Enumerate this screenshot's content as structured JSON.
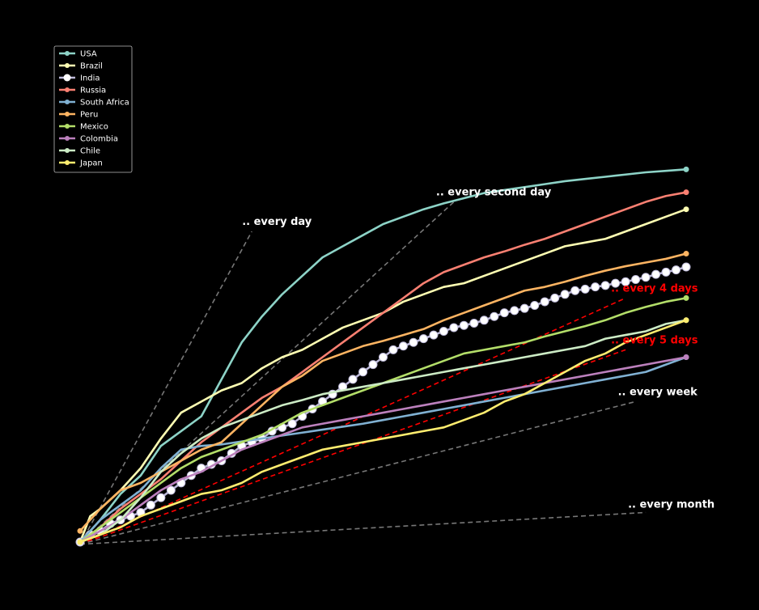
{
  "chart_data": {
    "type": "line",
    "title": "",
    "xlabel": "",
    "ylabel": "",
    "xlim": [
      0,
      60
    ],
    "ylim": [
      0,
      50
    ],
    "grid": false,
    "legend_placement": "top-left",
    "series": [
      {
        "name": "USA",
        "color": "#8dd3c7",
        "x": [
          0,
          2,
          4,
          6,
          8,
          10,
          12,
          14,
          16,
          18,
          20,
          22,
          24,
          26,
          28,
          30,
          32,
          34,
          36,
          38,
          40,
          42,
          44,
          46,
          48,
          50,
          52,
          54,
          56,
          58,
          60
        ],
        "y": [
          0,
          3,
          6.5,
          9,
          13,
          15,
          17,
          22,
          27,
          30.5,
          33.5,
          36,
          38.5,
          40,
          41.5,
          43,
          44,
          45,
          45.8,
          46.5,
          47.2,
          47.6,
          48,
          48.4,
          48.8,
          49.1,
          49.4,
          49.7,
          50,
          50.2,
          50.4
        ]
      },
      {
        "name": "Brazil",
        "color": "#ffffb3",
        "x": [
          0,
          1,
          2,
          4,
          6,
          8,
          10,
          12,
          14,
          16,
          18,
          20,
          22,
          24,
          26,
          28,
          30,
          32,
          34,
          36,
          38,
          40,
          42,
          44,
          46,
          48,
          50,
          52,
          54,
          56,
          58,
          60
        ],
        "y": [
          0,
          3.5,
          4.5,
          7,
          10,
          14,
          17.5,
          19,
          20.5,
          21.5,
          23.5,
          25,
          26,
          27.5,
          29,
          30,
          31,
          32.5,
          33.5,
          34.5,
          35,
          36,
          37,
          38,
          39,
          40,
          40.5,
          41,
          42,
          43,
          44,
          45
        ]
      },
      {
        "name": "India",
        "color": "#bebada",
        "x": [
          0,
          1,
          2,
          3,
          4,
          5,
          6,
          7,
          8,
          9,
          10,
          11,
          12,
          13,
          14,
          15,
          16,
          17,
          18,
          19,
          20,
          21,
          22,
          23,
          24,
          25,
          26,
          27,
          28,
          29,
          30,
          31,
          32,
          33,
          34,
          35,
          36,
          37,
          38,
          39,
          40,
          41,
          42,
          43,
          44,
          45,
          46,
          47,
          48,
          49,
          50,
          51,
          52,
          53,
          54,
          55,
          56,
          57,
          58,
          59,
          60
        ],
        "y": [
          0,
          1,
          1.5,
          2.5,
          3,
          3.5,
          4,
          5,
          6,
          7,
          8,
          9,
          10,
          10.5,
          11,
          12,
          13,
          13.5,
          14,
          15,
          15.5,
          16,
          17,
          18,
          19,
          20,
          21,
          22,
          23,
          24,
          25,
          26,
          26.5,
          27,
          27.5,
          28,
          28.5,
          29,
          29.3,
          29.6,
          30,
          30.5,
          31,
          31.3,
          31.6,
          32,
          32.5,
          33,
          33.5,
          34,
          34.2,
          34.5,
          34.7,
          35,
          35.2,
          35.5,
          35.8,
          36.2,
          36.5,
          36.8,
          37.2
        ]
      },
      {
        "name": "Russia",
        "color": "#fb8072",
        "x": [
          0,
          2,
          4,
          6,
          8,
          10,
          12,
          14,
          16,
          18,
          20,
          22,
          24,
          26,
          28,
          30,
          32,
          34,
          36,
          38,
          40,
          42,
          44,
          46,
          48,
          50,
          52,
          54,
          56,
          58,
          60
        ],
        "y": [
          0,
          2,
          4.5,
          6.5,
          8.5,
          11,
          13.5,
          15.5,
          17.5,
          19.5,
          21,
          23,
          25,
          27,
          29,
          31,
          33,
          35,
          36.5,
          37.5,
          38.5,
          39.3,
          40.2,
          41,
          42,
          43,
          44,
          45,
          46,
          46.8,
          47.3
        ]
      },
      {
        "name": "South Africa",
        "color": "#80b1d3",
        "x": [
          0,
          2,
          4,
          6,
          8,
          10,
          12,
          14,
          16,
          18,
          20,
          22,
          24,
          26,
          28,
          30,
          32,
          34,
          36,
          38,
          40,
          42,
          44,
          46,
          48,
          50,
          52,
          54,
          56,
          58,
          60
        ],
        "y": [
          0,
          3,
          5,
          7,
          10,
          12.5,
          13,
          13.2,
          13.6,
          14,
          14.4,
          14.8,
          15.2,
          15.6,
          16,
          16.5,
          17,
          17.5,
          18,
          18.5,
          19,
          19.5,
          20,
          20.5,
          21,
          21.5,
          22,
          22.5,
          23,
          24,
          25
        ]
      },
      {
        "name": "Peru",
        "color": "#fdb462",
        "x": [
          0,
          2,
          4,
          6,
          8,
          10,
          12,
          14,
          16,
          18,
          20,
          22,
          24,
          26,
          28,
          30,
          32,
          34,
          36,
          38,
          40,
          42,
          44,
          46,
          48,
          50,
          52,
          54,
          56,
          58,
          60
        ],
        "y": [
          1.5,
          4.5,
          7,
          8,
          9.5,
          11,
          12.5,
          13.5,
          16,
          18.5,
          21,
          22.5,
          24.5,
          25.5,
          26.5,
          27.2,
          28,
          28.8,
          30,
          31,
          32,
          33,
          34,
          34.5,
          35.2,
          36,
          36.7,
          37.3,
          37.8,
          38.3,
          39
        ]
      },
      {
        "name": "Mexico",
        "color": "#b3de69",
        "x": [
          0,
          2,
          4,
          6,
          8,
          10,
          12,
          14,
          16,
          18,
          20,
          22,
          24,
          26,
          28,
          30,
          32,
          34,
          36,
          38,
          40,
          42,
          44,
          46,
          48,
          50,
          52,
          54,
          56,
          58,
          60
        ],
        "y": [
          0,
          2,
          4,
          6,
          8,
          10,
          11.5,
          12.5,
          13.5,
          14.5,
          16,
          17.5,
          18.5,
          19.5,
          20.5,
          21.5,
          22.5,
          23.5,
          24.5,
          25.5,
          26,
          26.5,
          27,
          27.8,
          28.5,
          29.2,
          30,
          31,
          31.8,
          32.5,
          33
        ]
      },
      {
        "name": "Colombia",
        "color": "#bc80bd",
        "x": [
          0,
          2,
          4,
          6,
          8,
          10,
          12,
          14,
          16,
          18,
          20,
          22,
          24,
          26,
          28,
          30,
          32,
          34,
          36,
          38,
          40,
          42,
          44,
          46,
          48,
          50,
          52,
          54,
          56,
          58,
          60
        ],
        "y": [
          0,
          1.5,
          3,
          5,
          7,
          8.5,
          9.5,
          11,
          12.5,
          13.5,
          14.5,
          15.5,
          16,
          16.5,
          17,
          17.5,
          18,
          18.5,
          19,
          19.5,
          20,
          20.5,
          21,
          21.5,
          22,
          22.5,
          23,
          23.5,
          24,
          24.5,
          25
        ]
      },
      {
        "name": "Chile",
        "color": "#ccebc5",
        "x": [
          0,
          2,
          4,
          6,
          8,
          10,
          12,
          14,
          16,
          18,
          20,
          22,
          24,
          26,
          28,
          30,
          32,
          34,
          36,
          38,
          40,
          42,
          44,
          46,
          48,
          50,
          52,
          54,
          56,
          58,
          60
        ],
        "y": [
          0,
          1,
          3,
          6,
          9.5,
          12,
          14,
          15.5,
          16.5,
          17.5,
          18.5,
          19.2,
          20,
          20.5,
          21,
          21.5,
          22,
          22.5,
          23,
          23.5,
          24,
          24.5,
          25,
          25.5,
          26,
          26.5,
          27.5,
          28,
          28.5,
          29.5,
          30
        ]
      },
      {
        "name": "Japan",
        "color": "#ffed6f",
        "x": [
          0,
          2,
          4,
          6,
          8,
          10,
          12,
          14,
          16,
          18,
          20,
          22,
          24,
          26,
          28,
          30,
          32,
          34,
          36,
          38,
          40,
          42,
          44,
          46,
          48,
          50,
          52,
          54,
          56,
          58,
          60
        ],
        "y": [
          0,
          1,
          2,
          3.5,
          4.5,
          5.5,
          6.5,
          7,
          8,
          9.5,
          10.5,
          11.5,
          12.5,
          13,
          13.5,
          14,
          14.5,
          15,
          15.5,
          16.5,
          17.5,
          19,
          20,
          21.5,
          23,
          24.5,
          25.5,
          27,
          28,
          29,
          30
        ]
      }
    ],
    "reference_lines": [
      {
        "label": ".. every day",
        "color": "#777777",
        "label_color": "#ffffff",
        "x": [
          0,
          17
        ],
        "y": [
          -0.3,
          42
        ]
      },
      {
        "label": ".. every second day",
        "color": "#777777",
        "label_color": "#ffffff",
        "x": [
          0,
          37
        ],
        "y": [
          -0.3,
          46
        ]
      },
      {
        "label": ".. every 4 days",
        "color": "#ff0000",
        "label_color": "#ff0000",
        "x": [
          0,
          54
        ],
        "y": [
          -0.3,
          33
        ]
      },
      {
        "label": ".. every 5 days",
        "color": "#ff0000",
        "label_color": "#ff0000",
        "x": [
          0,
          54
        ],
        "y": [
          -0.3,
          26
        ]
      },
      {
        "label": ".. every week",
        "color": "#777777",
        "label_color": "#ffffff",
        "x": [
          0,
          55
        ],
        "y": [
          -0.3,
          19
        ]
      },
      {
        "label": ".. every month",
        "color": "#777777",
        "label_color": "#ffffff",
        "x": [
          0,
          56
        ],
        "y": [
          -0.3,
          4
        ]
      }
    ]
  }
}
